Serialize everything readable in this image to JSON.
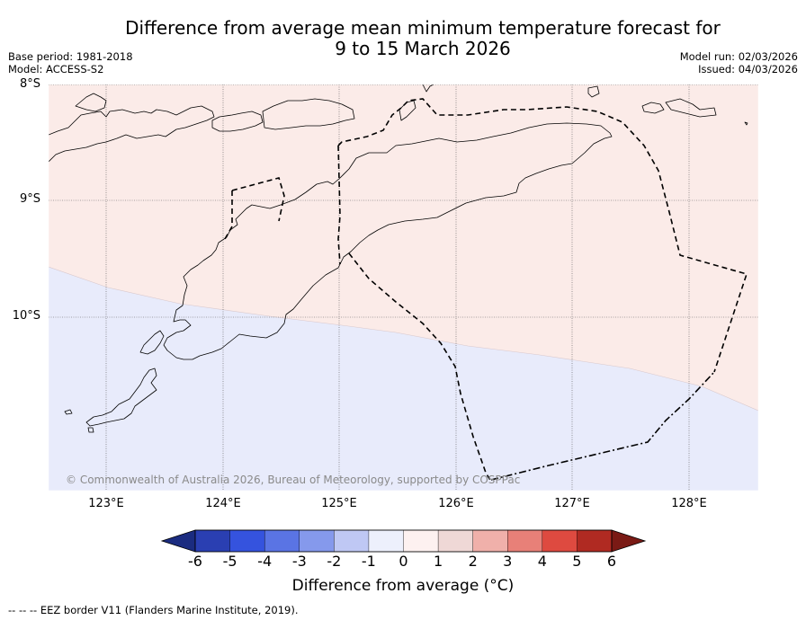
{
  "title_line1": "Difference from average mean minimum temperature forecast for",
  "title_line2": "9 to 15 March 2026",
  "base_period": "Base period: 1981-2018",
  "model": "Model: ACCESS-S2",
  "model_run": "Model run: 02/03/2026",
  "issued": "Issued: 04/03/2026",
  "lat_labels": [
    "8°S",
    "9°S",
    "10°S"
  ],
  "lon_labels": [
    "123°E",
    "124°E",
    "125°E",
    "126°E",
    "127°E",
    "128°E"
  ],
  "copyright": "© Commonwealth of Australia 2026, Bureau of Meteorology, supported by COSPPac",
  "colorbar": {
    "ticks": [
      "-6",
      "-5",
      "-4",
      "-3",
      "-2",
      "-1",
      "0",
      "1",
      "2",
      "3",
      "4",
      "5",
      "6"
    ],
    "colors": [
      "#1b2c80",
      "#2a3fb2",
      "#3553de",
      "#5a74e4",
      "#8599ec",
      "#bfc8f4",
      "#edf0fc",
      "#fdf1f0",
      "#efd8d6",
      "#f0b0aa",
      "#e88078",
      "#de4a40",
      "#b02a22",
      "#7a1a15"
    ],
    "label": "Difference from average (°C)"
  },
  "map": {
    "extent_lon": [
      122.5,
      128.6
    ],
    "extent_lat": [
      -11.5,
      -8.0
    ],
    "anomaly_fill": {
      "north_warm": "#fbebe8",
      "south_cool": "#e8ebfb"
    }
  },
  "eez_note": "--  --  -- EEZ border V11 (Flanders Marine Institute, 2019)."
}
